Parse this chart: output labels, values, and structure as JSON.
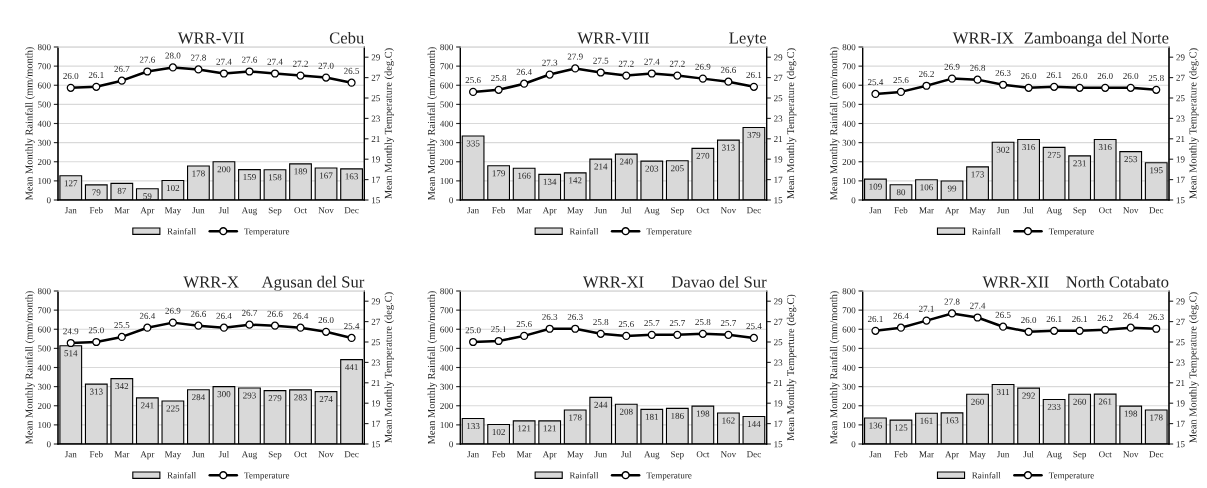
{
  "chart_data": [
    {
      "type": "bar",
      "title": "WRR-VII",
      "subtitle": "Cebu",
      "categories": [
        "Jan",
        "Feb",
        "Mar",
        "Apr",
        "May",
        "Jun",
        "Jul",
        "Aug",
        "Sep",
        "Oct",
        "Nov",
        "Dec"
      ],
      "ylabel": "Mean Monthly Rainfall (mm/month)",
      "y2label": "Mean Monthly Temperature (deg.C)",
      "ylim": [
        0,
        800
      ],
      "yticks": [
        0,
        100,
        200,
        300,
        400,
        500,
        600,
        700,
        800
      ],
      "y2lim": [
        15,
        30
      ],
      "y2ticks": [
        15,
        17,
        19,
        21,
        23,
        25,
        27,
        29
      ],
      "grid": "y",
      "legend": "bottom",
      "data_labels": true,
      "series": [
        {
          "name": "Rainfall",
          "color": "#d9d9d9",
          "values": [
            127,
            79,
            87,
            59,
            102,
            178,
            200,
            159,
            158,
            189,
            167,
            163
          ]
        },
        {
          "name": "Temperature",
          "type": "line",
          "axis": "y2",
          "color": "#000000",
          "marker": "circle",
          "values": [
            26.0,
            26.1,
            26.7,
            27.6,
            28.0,
            27.8,
            27.4,
            27.6,
            27.4,
            27.2,
            27.0,
            26.5
          ],
          "value_labels": [
            "26.0",
            "26.1",
            "26.7",
            "27.6",
            "28.0",
            "27.8",
            "27.4",
            "27.6",
            "27.4",
            "27.2",
            "27.0",
            "26.5"
          ]
        }
      ]
    },
    {
      "type": "bar",
      "title": "WRR-VIII",
      "subtitle": "Leyte",
      "categories": [
        "Jan",
        "Feb",
        "Mar",
        "Apr",
        "May",
        "Jun",
        "Jul",
        "Aug",
        "Sep",
        "Oct",
        "Nov",
        "Dec"
      ],
      "ylabel": "Mean Monthly Rainfall (mm/month)",
      "y2label": "Mean Monthly Temperature (deg.C)",
      "ylim": [
        0,
        800
      ],
      "yticks": [
        0,
        100,
        200,
        300,
        400,
        500,
        600,
        700,
        800
      ],
      "y2lim": [
        15,
        30
      ],
      "y2ticks": [
        15,
        17,
        19,
        21,
        23,
        25,
        27,
        29
      ],
      "grid": "y",
      "legend": "bottom",
      "data_labels": true,
      "series": [
        {
          "name": "Rainfall",
          "color": "#d9d9d9",
          "values": [
            335,
            179,
            166,
            134,
            142,
            214,
            240,
            203,
            205,
            270,
            313,
            379
          ]
        },
        {
          "name": "Temperature",
          "type": "line",
          "axis": "y2",
          "color": "#000000",
          "marker": "circle",
          "values": [
            25.6,
            25.8,
            26.4,
            27.3,
            27.9,
            27.5,
            27.2,
            27.4,
            27.2,
            26.9,
            26.6,
            26.1
          ],
          "value_labels": [
            "25.6",
            "25.8",
            "26.4",
            "27.3",
            "27.9",
            "27.5",
            "27.2",
            "27.4",
            "27.2",
            "26.9",
            "26.6",
            "26.1"
          ]
        }
      ]
    },
    {
      "type": "bar",
      "title": "WRR-IX",
      "subtitle": "Zamboanga del Norte",
      "categories": [
        "Jan",
        "Feb",
        "Mar",
        "Apr",
        "May",
        "Jun",
        "Jul",
        "Aug",
        "Sep",
        "Oct",
        "Nov",
        "Dec"
      ],
      "ylabel": "Mean Monthly Rainfall (mm/month)",
      "y2label": "Mean Monthly Temperature (deg.C)",
      "ylim": [
        0,
        800
      ],
      "yticks": [
        0,
        100,
        200,
        300,
        400,
        500,
        600,
        700,
        800
      ],
      "y2lim": [
        15,
        30
      ],
      "y2ticks": [
        15,
        17,
        19,
        21,
        23,
        25,
        27,
        29
      ],
      "grid": "y",
      "legend": "bottom",
      "data_labels": true,
      "series": [
        {
          "name": "Rainfall",
          "color": "#d9d9d9",
          "values": [
            109,
            80,
            106,
            99,
            173,
            302,
            316,
            275,
            231,
            316,
            253,
            195
          ]
        },
        {
          "name": "Temperature",
          "type": "line",
          "axis": "y2",
          "color": "#000000",
          "marker": "circle",
          "values": [
            25.4,
            25.6,
            26.2,
            26.9,
            26.8,
            26.3,
            26.0,
            26.1,
            26.0,
            26.0,
            26.0,
            25.8
          ],
          "value_labels": [
            "25.4",
            "25.6",
            "26.2",
            "26.9",
            "26.8",
            "26.3",
            "26.0",
            "26.1",
            "26.0",
            "26.0",
            "26.0",
            "25.8"
          ]
        }
      ]
    },
    {
      "type": "bar",
      "title": "WRR-X",
      "subtitle": "Agusan del Sur",
      "categories": [
        "Jan",
        "Feb",
        "Mar",
        "Apr",
        "May",
        "Jun",
        "Jul",
        "Aug",
        "Sep",
        "Oct",
        "Nov",
        "Dec"
      ],
      "ylabel": "Mean Monthly Rainfall (mm/month)",
      "y2label": "Mean Monthly Temperature (deg.C)",
      "ylim": [
        0,
        800
      ],
      "yticks": [
        0,
        100,
        200,
        300,
        400,
        500,
        600,
        700,
        800
      ],
      "y2lim": [
        15,
        30
      ],
      "y2ticks": [
        15,
        17,
        19,
        21,
        23,
        25,
        27,
        29
      ],
      "grid": "y",
      "legend": "bottom",
      "data_labels": true,
      "series": [
        {
          "name": "Rainfall",
          "color": "#d9d9d9",
          "values": [
            514,
            313,
            342,
            241,
            225,
            284,
            300,
            293,
            279,
            283,
            274,
            441
          ]
        },
        {
          "name": "Temperature",
          "type": "line",
          "axis": "y2",
          "color": "#000000",
          "marker": "circle",
          "values": [
            24.9,
            25.0,
            25.5,
            26.4,
            26.9,
            26.6,
            26.4,
            26.7,
            26.6,
            26.4,
            26.0,
            25.4
          ],
          "value_labels": [
            "24.9",
            "25.0",
            "25.5",
            "26.4",
            "26.9",
            "26.6",
            "26.4",
            "26.7",
            "26.6",
            "26.4",
            "26.0",
            "25.4"
          ]
        }
      ]
    },
    {
      "type": "bar",
      "title": "WRR-XI",
      "subtitle": "Davao del Sur",
      "categories": [
        "Jan",
        "Feb",
        "Mar",
        "Apr",
        "May",
        "Jun",
        "Jul",
        "Aug",
        "Sep",
        "Oct",
        "Nov",
        "Dec"
      ],
      "ylabel": "Mean Monthly Rainfall (mm/month)",
      "y2label": "Mean Monthly Temperture (deg.C)",
      "ylim": [
        0,
        800
      ],
      "yticks": [
        0,
        100,
        200,
        300,
        400,
        500,
        600,
        700,
        800
      ],
      "y2lim": [
        15,
        30
      ],
      "y2ticks": [
        15,
        17,
        19,
        21,
        23,
        25,
        27,
        29
      ],
      "grid": "y",
      "legend": "bottom",
      "data_labels": true,
      "series": [
        {
          "name": "Rainfall",
          "color": "#d9d9d9",
          "values": [
            133,
            102,
            121,
            121,
            178,
            244,
            208,
            181,
            186,
            198,
            162,
            144
          ]
        },
        {
          "name": "Temperature",
          "type": "line",
          "axis": "y2",
          "color": "#000000",
          "marker": "circle",
          "values": [
            25.0,
            25.1,
            25.6,
            26.3,
            26.3,
            25.8,
            25.6,
            25.7,
            25.7,
            25.8,
            25.7,
            25.4
          ],
          "value_labels": [
            "25.0",
            "25.1",
            "25.6",
            "26.3",
            "26.3",
            "25.8",
            "25.6",
            "25.7",
            "25.7",
            "25.8",
            "25.7",
            "25.4"
          ]
        }
      ]
    },
    {
      "type": "bar",
      "title": "WRR-XII",
      "subtitle": "North Cotabato",
      "categories": [
        "Jan",
        "Feb",
        "Mar",
        "Apr",
        "May",
        "Jun",
        "Jul",
        "Aug",
        "Sep",
        "Oct",
        "Nov",
        "Dec"
      ],
      "ylabel": "Mean Monthly Rainfall (mm/month)",
      "y2label": "Mean Monthly Temperature (deg.C)",
      "ylim": [
        0,
        800
      ],
      "yticks": [
        0,
        100,
        200,
        300,
        400,
        500,
        600,
        700,
        800
      ],
      "y2lim": [
        15,
        30
      ],
      "y2ticks": [
        15,
        17,
        19,
        21,
        23,
        25,
        27,
        29
      ],
      "grid": "y",
      "legend": "bottom",
      "data_labels": true,
      "series": [
        {
          "name": "Rainfall",
          "color": "#d9d9d9",
          "values": [
            136,
            125,
            161,
            163,
            260,
            311,
            292,
            233,
            260,
            261,
            198,
            178
          ]
        },
        {
          "name": "Temperature",
          "type": "line",
          "axis": "y2",
          "color": "#000000",
          "marker": "circle",
          "values": [
            26.1,
            26.4,
            27.1,
            27.8,
            27.4,
            26.5,
            26.0,
            26.1,
            26.1,
            26.2,
            26.4,
            26.3
          ],
          "value_labels": [
            "26.1",
            "26.4",
            "27.1",
            "27.8",
            "27.4",
            "26.5",
            "26.0",
            "26.1",
            "26.1",
            "26.2",
            "26.4",
            "26.3"
          ]
        }
      ]
    }
  ]
}
